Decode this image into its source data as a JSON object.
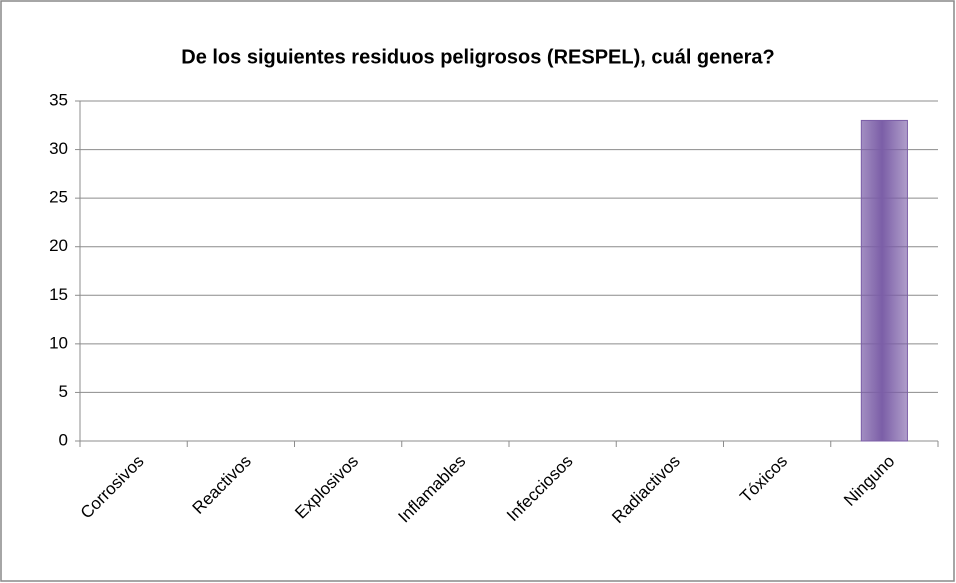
{
  "chart_data": {
    "type": "bar",
    "title": "De los siguientes residuos peligrosos (RESPEL), cuál genera?",
    "categories": [
      "Corrosivos",
      "Reactivos",
      "Explosivos",
      "Inflamables",
      "Infecciosos",
      "Radiactivos",
      "Tóxicos",
      "Ninguno"
    ],
    "values": [
      0,
      0,
      0,
      0,
      0,
      0,
      0,
      33
    ],
    "color": "#7b5ea7",
    "ylim": [
      0,
      35
    ],
    "yticks": [
      0,
      5,
      10,
      15,
      20,
      25,
      30,
      35
    ],
    "grid": true
  }
}
